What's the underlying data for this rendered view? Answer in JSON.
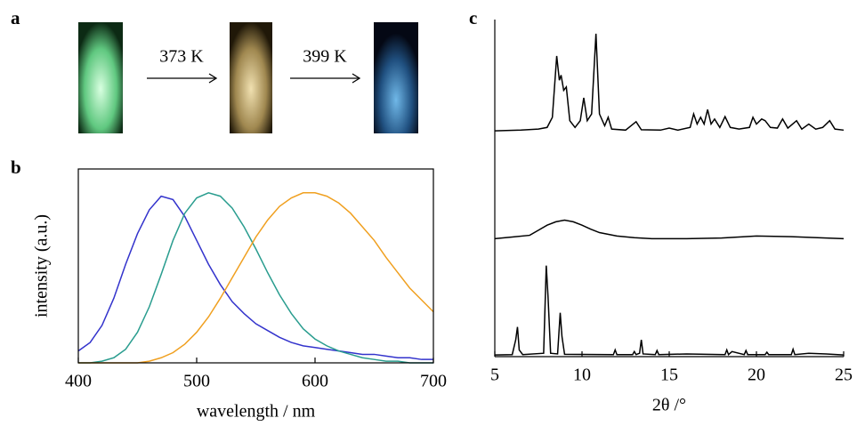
{
  "panel_labels": [
    "a",
    "b",
    "c"
  ],
  "photo_arrows": [
    "373 K",
    "399 K"
  ],
  "chart_data": [
    {
      "type": "line",
      "xlabel": "wavelength / nm",
      "ylabel": "intensity (a.u.)",
      "xlim": [
        400,
        700
      ],
      "xticks": [
        400,
        500,
        600,
        700
      ],
      "ylim": [
        0,
        1.14
      ],
      "x": [
        400,
        410,
        420,
        430,
        440,
        450,
        460,
        470,
        480,
        490,
        500,
        510,
        520,
        530,
        540,
        550,
        560,
        570,
        580,
        590,
        600,
        610,
        620,
        630,
        640,
        650,
        660,
        670,
        680,
        690,
        700
      ],
      "series": [
        {
          "color": "#3333cc",
          "values": [
            0.07,
            0.12,
            0.22,
            0.38,
            0.58,
            0.76,
            0.9,
            0.98,
            0.96,
            0.86,
            0.72,
            0.58,
            0.46,
            0.36,
            0.29,
            0.23,
            0.19,
            0.15,
            0.12,
            0.1,
            0.09,
            0.08,
            0.07,
            0.06,
            0.05,
            0.05,
            0.04,
            0.03,
            0.03,
            0.02,
            0.02
          ]
        },
        {
          "color": "#2a9d8f",
          "values": [
            0,
            0,
            0.01,
            0.03,
            0.08,
            0.18,
            0.33,
            0.52,
            0.72,
            0.88,
            0.97,
            1.0,
            0.98,
            0.91,
            0.8,
            0.67,
            0.53,
            0.4,
            0.29,
            0.2,
            0.14,
            0.1,
            0.07,
            0.05,
            0.03,
            0.02,
            0.01,
            0.01,
            0,
            0,
            0
          ]
        },
        {
          "color": "#f0a020",
          "values": [
            0,
            0,
            0,
            0,
            0,
            0,
            0.01,
            0.03,
            0.06,
            0.11,
            0.18,
            0.27,
            0.38,
            0.5,
            0.62,
            0.74,
            0.84,
            0.92,
            0.97,
            1.0,
            1.0,
            0.98,
            0.94,
            0.88,
            0.8,
            0.72,
            0.62,
            0.53,
            0.44,
            0.37,
            0.3
          ]
        }
      ]
    },
    {
      "type": "line",
      "xlabel": "2θ /°",
      "xlim": [
        5,
        25
      ],
      "xticks": [
        5,
        10,
        15,
        20,
        25
      ],
      "ylim": [
        0,
        1
      ],
      "series": [
        {
          "color": "#000000",
          "x": [
            5,
            6.0,
            6.2,
            6.3,
            6.4,
            6.6,
            7.8,
            7.95,
            8.05,
            8.2,
            8.6,
            8.75,
            8.85,
            9.0,
            11.8,
            11.9,
            12.0,
            12.9,
            13.0,
            13.1,
            13.3,
            13.4,
            13.5,
            14.2,
            14.3,
            14.4,
            16.0,
            18.2,
            18.3,
            18.4,
            18.6,
            19.3,
            19.4,
            19.5,
            20.5,
            20.6,
            20.7,
            22.0,
            22.1,
            22.2,
            23.0,
            24.0,
            25
          ],
          "values": [
            0.005,
            0.006,
            0.05,
            0.088,
            0.02,
            0.006,
            0.01,
            0.27,
            0.18,
            0.01,
            0.008,
            0.13,
            0.06,
            0.007,
            0.006,
            0.02,
            0.006,
            0.006,
            0.015,
            0.006,
            0.01,
            0.05,
            0.008,
            0.006,
            0.018,
            0.006,
            0.008,
            0.006,
            0.02,
            0.006,
            0.015,
            0.006,
            0.018,
            0.006,
            0.006,
            0.013,
            0.006,
            0.006,
            0.022,
            0.006,
            0.01,
            0.008,
            0.005
          ]
        },
        {
          "color": "#000000",
          "x": [
            5,
            6,
            7,
            7.5,
            8,
            8.5,
            9,
            9.5,
            10,
            10.5,
            11,
            12,
            13,
            14,
            16,
            18,
            20,
            22,
            24,
            25
          ],
          "values": [
            0.35,
            0.355,
            0.36,
            0.375,
            0.39,
            0.4,
            0.405,
            0.4,
            0.39,
            0.378,
            0.368,
            0.358,
            0.353,
            0.35,
            0.35,
            0.352,
            0.358,
            0.356,
            0.352,
            0.35
          ]
        },
        {
          "color": "#000000",
          "x": [
            5,
            6.5,
            7.5,
            8.0,
            8.3,
            8.55,
            8.7,
            8.8,
            8.95,
            9.1,
            9.3,
            9.6,
            9.9,
            10.1,
            10.3,
            10.55,
            10.8,
            11.0,
            11.3,
            11.5,
            11.7,
            12.5,
            13.1,
            13.4,
            14.5,
            15.0,
            15.5,
            16.2,
            16.4,
            16.6,
            16.8,
            17.0,
            17.2,
            17.4,
            17.6,
            17.9,
            18.2,
            18.5,
            19.0,
            19.6,
            19.8,
            20.0,
            20.3,
            20.5,
            20.8,
            21.2,
            21.5,
            21.8,
            22.3,
            22.6,
            23.0,
            23.4,
            23.8,
            24.2,
            24.5,
            25
          ],
          "values": [
            0.67,
            0.672,
            0.675,
            0.68,
            0.71,
            0.892,
            0.82,
            0.835,
            0.79,
            0.8,
            0.7,
            0.68,
            0.7,
            0.768,
            0.7,
            0.72,
            0.958,
            0.72,
            0.685,
            0.71,
            0.675,
            0.672,
            0.697,
            0.673,
            0.672,
            0.678,
            0.672,
            0.68,
            0.72,
            0.69,
            0.71,
            0.69,
            0.733,
            0.69,
            0.705,
            0.68,
            0.712,
            0.68,
            0.675,
            0.68,
            0.71,
            0.69,
            0.705,
            0.7,
            0.68,
            0.678,
            0.705,
            0.678,
            0.7,
            0.675,
            0.69,
            0.675,
            0.68,
            0.7,
            0.675,
            0.672
          ]
        }
      ]
    }
  ]
}
